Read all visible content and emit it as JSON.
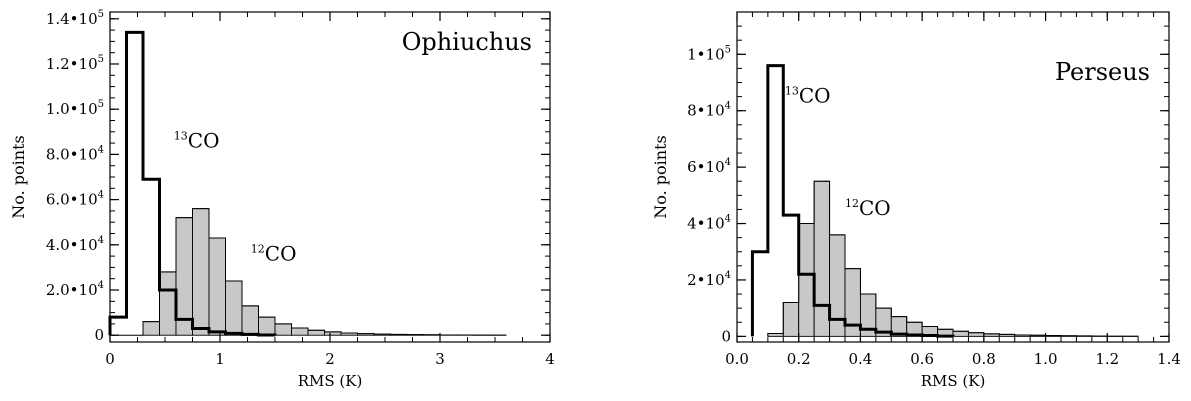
{
  "chart_data": [
    {
      "type": "bar",
      "subtype": "histogram",
      "title": "Ophiuchus",
      "xlabel": "RMS (K)",
      "ylabel": "No. points",
      "xlim": [
        0,
        4
      ],
      "ylim": [
        -3000,
        143000
      ],
      "grid": false,
      "xticks": [
        {
          "value": 0,
          "label": "0"
        },
        {
          "value": 1,
          "label": "1"
        },
        {
          "value": 2,
          "label": "2"
        },
        {
          "value": 3,
          "label": "3"
        },
        {
          "value": 4,
          "label": "4"
        }
      ],
      "yticks": [
        {
          "value": 0,
          "mantissa": "0",
          "exp": ""
        },
        {
          "value": 20000,
          "mantissa": "2.0•",
          "exp": "4"
        },
        {
          "value": 40000,
          "mantissa": "4.0•",
          "exp": "4"
        },
        {
          "value": 60000,
          "mantissa": "6.0•",
          "exp": "4"
        },
        {
          "value": 80000,
          "mantissa": "8.0•",
          "exp": "4"
        },
        {
          "value": 100000,
          "mantissa": "1.0•",
          "exp": "5"
        },
        {
          "value": 120000,
          "mantissa": "1.2•",
          "exp": "5"
        },
        {
          "value": 140000,
          "mantissa": "1.4•",
          "exp": "5"
        }
      ],
      "series": [
        {
          "name": "13CO",
          "label": {
            "sup": "13",
            "main": "CO"
          },
          "style": "thick-outline",
          "bin_edges": [
            0,
            0.15,
            0.3,
            0.45,
            0.6,
            0.75,
            0.9,
            1.05,
            1.2,
            1.35,
            1.5
          ],
          "values": [
            8000,
            134000,
            69000,
            20000,
            7000,
            3000,
            1500,
            800,
            400,
            100
          ]
        },
        {
          "name": "12CO",
          "label": {
            "sup": "12",
            "main": "CO"
          },
          "style": "gray-filled",
          "bin_edges": [
            0,
            0.15,
            0.3,
            0.45,
            0.6,
            0.75,
            0.9,
            1.05,
            1.2,
            1.35,
            1.5,
            1.65,
            1.8,
            1.95,
            2.1,
            2.25,
            2.4,
            2.55,
            2.7,
            2.85,
            3.0,
            3.15,
            3.3,
            3.45,
            3.6
          ],
          "values": [
            0,
            0,
            6000,
            28000,
            52000,
            56000,
            43000,
            24000,
            13000,
            8000,
            5000,
            3200,
            2200,
            1500,
            1000,
            700,
            500,
            350,
            250,
            180,
            120,
            80,
            50,
            30
          ]
        }
      ],
      "annotations": [
        {
          "sup": "13",
          "main": "CO",
          "x": 0.58,
          "y": 83000
        },
        {
          "sup": "12",
          "main": "CO",
          "x": 1.28,
          "y": 33000
        }
      ]
    },
    {
      "type": "bar",
      "subtype": "histogram",
      "title": "Perseus",
      "xlabel": "RMS (K)",
      "ylabel": "No. points",
      "xlim": [
        0,
        1.4
      ],
      "ylim": [
        -2000,
        115000
      ],
      "grid": false,
      "xticks": [
        {
          "value": 0,
          "label": "0.0"
        },
        {
          "value": 0.2,
          "label": "0.2"
        },
        {
          "value": 0.4,
          "label": "0.4"
        },
        {
          "value": 0.6,
          "label": "0.6"
        },
        {
          "value": 0.8,
          "label": "0.8"
        },
        {
          "value": 1.0,
          "label": "1.0"
        },
        {
          "value": 1.2,
          "label": "1.2"
        },
        {
          "value": 1.4,
          "label": "1.4"
        }
      ],
      "yticks": [
        {
          "value": 0,
          "mantissa": "0",
          "exp": ""
        },
        {
          "value": 20000,
          "mantissa": "2•",
          "exp": "4"
        },
        {
          "value": 40000,
          "mantissa": "4•",
          "exp": "4"
        },
        {
          "value": 60000,
          "mantissa": "6•",
          "exp": "4"
        },
        {
          "value": 80000,
          "mantissa": "8•",
          "exp": "4"
        },
        {
          "value": 100000,
          "mantissa": "1•",
          "exp": "5"
        }
      ],
      "series": [
        {
          "name": "13CO",
          "label": {
            "sup": "13",
            "main": "CO"
          },
          "style": "thick-outline",
          "bin_edges": [
            0.05,
            0.1,
            0.15,
            0.2,
            0.25,
            0.3,
            0.35,
            0.4,
            0.45,
            0.5,
            0.55,
            0.6,
            0.65,
            0.7
          ],
          "values": [
            30000,
            96000,
            43000,
            22000,
            11000,
            6000,
            4000,
            2500,
            1500,
            800,
            500,
            300,
            100
          ]
        },
        {
          "name": "12CO",
          "label": {
            "sup": "12",
            "main": "CO"
          },
          "style": "gray-filled",
          "bin_edges": [
            0.1,
            0.15,
            0.2,
            0.25,
            0.3,
            0.35,
            0.4,
            0.45,
            0.5,
            0.55,
            0.6,
            0.65,
            0.7,
            0.75,
            0.8,
            0.85,
            0.9,
            0.95,
            1.0,
            1.05,
            1.1,
            1.15,
            1.2,
            1.25,
            1.3
          ],
          "values": [
            1000,
            12000,
            40000,
            55000,
            36000,
            24000,
            15000,
            10000,
            7000,
            5000,
            3500,
            2500,
            1800,
            1300,
            900,
            700,
            500,
            400,
            300,
            200,
            150,
            100,
            60,
            30
          ]
        }
      ],
      "annotations": [
        {
          "sup": "13",
          "main": "CO",
          "x": 0.155,
          "y": 83000
        },
        {
          "sup": "12",
          "main": "CO",
          "x": 0.35,
          "y": 43000
        }
      ]
    }
  ]
}
